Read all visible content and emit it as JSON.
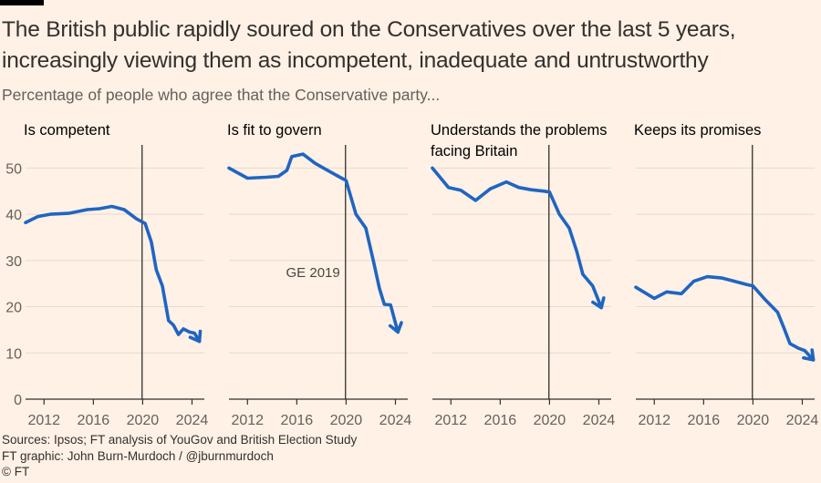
{
  "header": {
    "title_line1": "The British public rapidly soured on the Conservatives over the last 5 years,",
    "title_line2": "increasingly viewing them as incompetent, inadequate and untrustworthy",
    "subtitle": "Percentage of people who agree that the Conservative party..."
  },
  "footer": {
    "sources": "Sources: Ipsos; FT analysis of YouGov and British Election Study",
    "graphic": "FT graphic: John Burn-Murdoch / @jburnmurdoch",
    "copyright": "© FT"
  },
  "colors": {
    "background": "#fff1e5",
    "line": "#1f65c2",
    "axis": "#33302e",
    "gridline": "#e6d9ce"
  },
  "chart_data": {
    "type": "line",
    "layout": "small-multiples",
    "ylim": [
      0,
      55
    ],
    "yticks": [
      0,
      10,
      20,
      30,
      40,
      50
    ],
    "xlim": [
      2010.5,
      2025
    ],
    "xticks": [
      2012,
      2016,
      2020,
      2024
    ],
    "reference_line": {
      "x": 2019.95,
      "label": "GE 2019"
    },
    "panels": [
      {
        "title_lines": [
          "Is competent"
        ],
        "points": [
          [
            2010.5,
            38.2
          ],
          [
            2011.5,
            39.5
          ],
          [
            2012.5,
            40.0
          ],
          [
            2014,
            40.2
          ],
          [
            2015.5,
            41.0
          ],
          [
            2016.5,
            41.2
          ],
          [
            2017.5,
            41.7
          ],
          [
            2018.5,
            41.0
          ],
          [
            2019.5,
            39.0
          ],
          [
            2020.2,
            38.0
          ],
          [
            2020.7,
            34.0
          ],
          [
            2021.1,
            28.0
          ],
          [
            2021.6,
            24.5
          ],
          [
            2022.1,
            17.0
          ],
          [
            2022.5,
            16.0
          ],
          [
            2022.9,
            14.0
          ],
          [
            2023.3,
            15.2
          ],
          [
            2023.8,
            14.5
          ],
          [
            2024.2,
            14.3
          ],
          [
            2024.6,
            12.5
          ]
        ]
      },
      {
        "title_lines": [
          "Is fit to govern"
        ],
        "points": [
          [
            2010.5,
            50.0
          ],
          [
            2012.0,
            47.8
          ],
          [
            2013.5,
            48.0
          ],
          [
            2014.5,
            48.2
          ],
          [
            2015.2,
            49.5
          ],
          [
            2015.6,
            52.5
          ],
          [
            2016.5,
            53.0
          ],
          [
            2017.5,
            51.0
          ],
          [
            2018.5,
            49.5
          ],
          [
            2019.5,
            48.0
          ],
          [
            2020.0,
            47.3
          ],
          [
            2020.8,
            40.0
          ],
          [
            2021.6,
            37.0
          ],
          [
            2022.2,
            30.0
          ],
          [
            2022.7,
            24.0
          ],
          [
            2023.1,
            20.5
          ],
          [
            2023.6,
            20.4
          ],
          [
            2024.2,
            14.5
          ]
        ]
      },
      {
        "title_lines": [
          "Understands the problems",
          "facing Britain"
        ],
        "points": [
          [
            2010.5,
            50.0
          ],
          [
            2011.8,
            45.8
          ],
          [
            2012.8,
            45.2
          ],
          [
            2014.0,
            43.0
          ],
          [
            2015.2,
            45.5
          ],
          [
            2016.5,
            47.0
          ],
          [
            2017.5,
            45.8
          ],
          [
            2018.5,
            45.3
          ],
          [
            2019.5,
            45.0
          ],
          [
            2020.0,
            44.8
          ],
          [
            2020.8,
            40.0
          ],
          [
            2021.6,
            37.0
          ],
          [
            2022.2,
            32.0
          ],
          [
            2022.7,
            27.0
          ],
          [
            2023.5,
            24.5
          ],
          [
            2024.2,
            19.8
          ]
        ]
      },
      {
        "title_lines": [
          "Keeps its promises"
        ],
        "points": [
          [
            2010.5,
            24.2
          ],
          [
            2012.0,
            21.8
          ],
          [
            2013.0,
            23.2
          ],
          [
            2014.2,
            22.8
          ],
          [
            2015.2,
            25.5
          ],
          [
            2016.3,
            26.5
          ],
          [
            2017.5,
            26.2
          ],
          [
            2018.5,
            25.5
          ],
          [
            2019.5,
            24.8
          ],
          [
            2020.0,
            24.5
          ],
          [
            2021.0,
            21.5
          ],
          [
            2022.0,
            18.8
          ],
          [
            2022.5,
            15.5
          ],
          [
            2023.0,
            12.0
          ],
          [
            2023.7,
            11.0
          ],
          [
            2024.2,
            10.5
          ],
          [
            2024.9,
            8.5
          ]
        ]
      }
    ]
  }
}
